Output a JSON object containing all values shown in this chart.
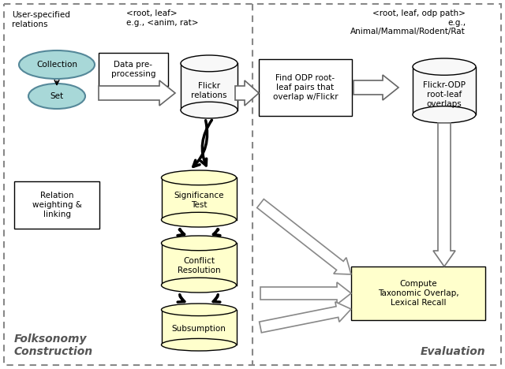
{
  "bg_color": "#ffffff",
  "left_panel_label": "Folksonomy\nConstruction",
  "right_panel_label": "Evaluation",
  "left_header_text1": "User-specified\nrelations",
  "left_header_text2": "<root, leaf>\ne.g., <anim, rat>",
  "right_header_text": "<root, leaf, odp path>\ne.g.,\nAnimal/Mammal/Rodent/Rat",
  "ellipse_collection_label": "Collection",
  "ellipse_set_label": "Set",
  "ellipse_color": "#a8d8d8",
  "box_data_preproc": "Data pre-\nprocessing",
  "box_relation_weight": "Relation\nweighting &\nlinking",
  "box_find_odp": "Find ODP root-\nleaf pairs that\noverlap w/Flickr",
  "box_compute": "Compute\nTaxonomic Overlap,\nLexical Recall",
  "cylinder_flickr": "Flickr\nrelations",
  "cylinder_sig": "Significance\nTest",
  "cylinder_conflict": "Conflict\nResolution",
  "cylinder_subsump": "Subsumption",
  "cylinder_flickr_odp": "Flickr-ODP\nroot-leaf\noverlaps",
  "cylinder_color_white": "#f8f8f8",
  "cylinder_color_yellow": "#ffffcc",
  "box_color_white": "#ffffff",
  "box_color_yellow": "#ffffcc",
  "border_dash": [
    4,
    3
  ]
}
